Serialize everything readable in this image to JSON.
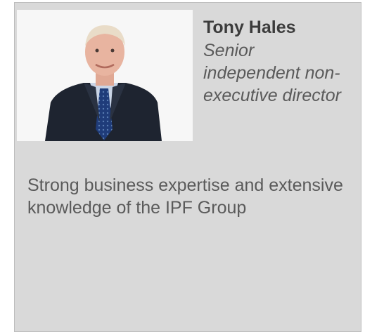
{
  "profile": {
    "name": "Tony Hales",
    "role": "Senior independent non-executive director",
    "description": "Strong business expertise and extensive knowledge of the IPF Group"
  }
}
